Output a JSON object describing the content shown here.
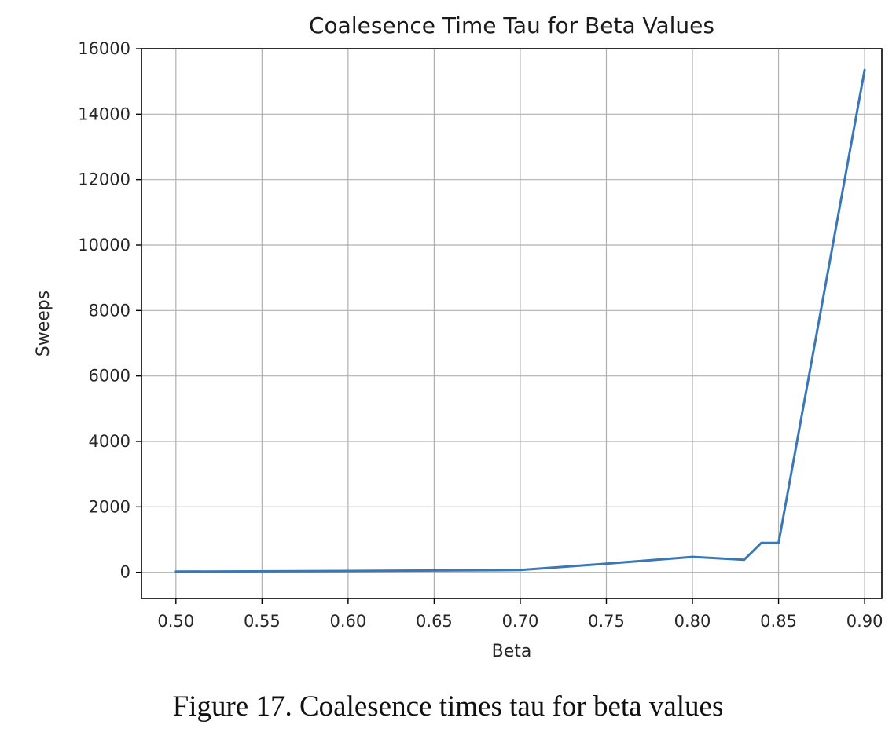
{
  "chart_data": {
    "type": "line",
    "title": "Coalesence Time Tau for Beta Values",
    "xlabel": "Beta",
    "ylabel": "Sweeps",
    "xlim": [
      0.48,
      0.91
    ],
    "ylim": [
      -800,
      16000
    ],
    "x_ticks": [
      0.5,
      0.55,
      0.6,
      0.65,
      0.7,
      0.75,
      0.8,
      0.85,
      0.9
    ],
    "x_tick_labels": [
      "0.50",
      "0.55",
      "0.60",
      "0.65",
      "0.70",
      "0.75",
      "0.80",
      "0.85",
      "0.90"
    ],
    "y_ticks": [
      0,
      2000,
      4000,
      6000,
      8000,
      10000,
      12000,
      14000,
      16000
    ],
    "y_tick_labels": [
      "0",
      "2000",
      "4000",
      "6000",
      "8000",
      "10000",
      "12000",
      "14000",
      "16000"
    ],
    "grid": true,
    "series": [
      {
        "color": "#3a78b5",
        "x": [
          0.5,
          0.6,
          0.7,
          0.75,
          0.8,
          0.83,
          0.84,
          0.85,
          0.9
        ],
        "y": [
          20,
          40,
          70,
          260,
          470,
          380,
          900,
          900,
          15350
        ]
      }
    ]
  },
  "caption": "Figure 17. Coalesence times tau for beta values"
}
